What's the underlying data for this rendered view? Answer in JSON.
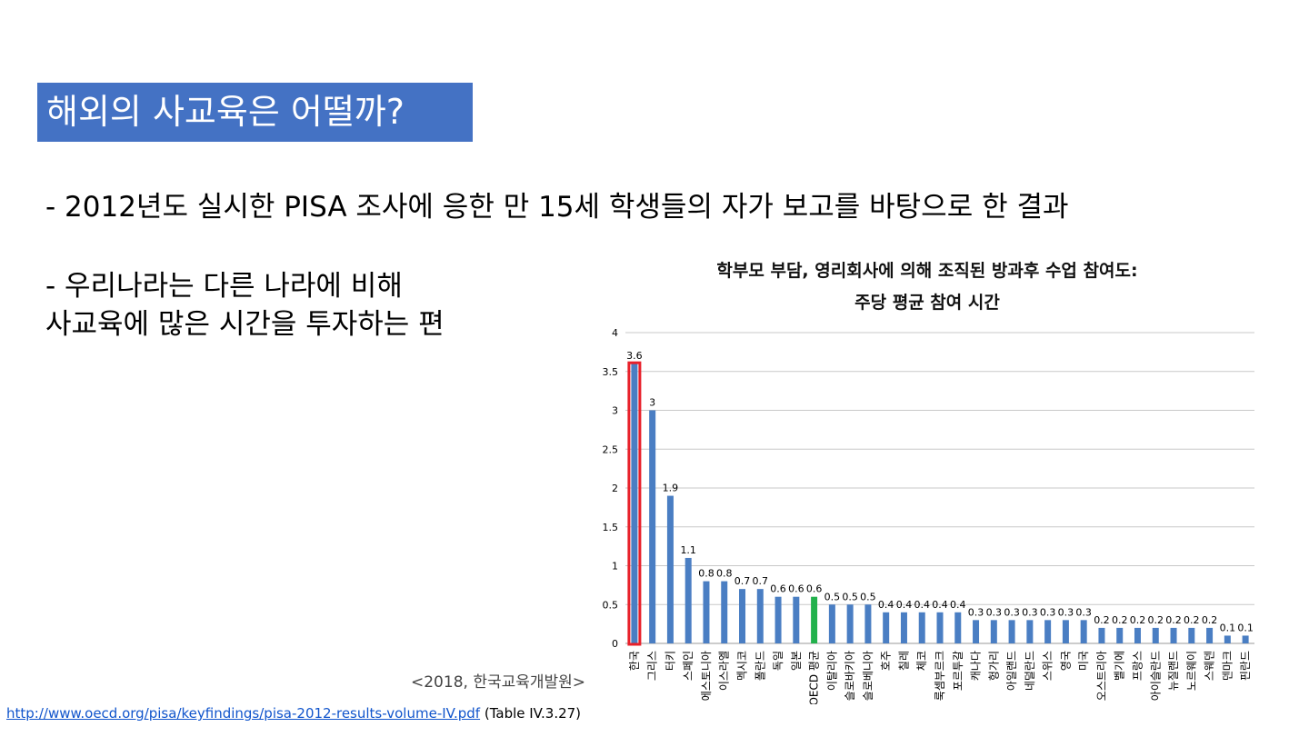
{
  "slide": {
    "title": "해외의 사교육은 어떨까?",
    "bullet1": "- 2012년도 실시한 PISA 조사에 응한 만 15세 학생들의 자가 보고를 바탕으로 한 결과",
    "bullet2_line1": "- 우리나라는 다른 나라에 비해",
    "bullet2_line2": "사교육에 많은 시간을 투자하는 편",
    "source_note": "<2018, 한국교육개발원>",
    "footer_link": "http://www.oecd.org/pisa/keyfindings/pisa-2012-results-volume-IV.pdf",
    "footer_ref": " (Table IV.3.27)"
  },
  "colors": {
    "title_bg": "#4472c4",
    "bar": "#4a7ec3",
    "highlight_bar": "#22b14c",
    "highlight_box": "#e8202a",
    "link": "#1155cc"
  },
  "chart_data": {
    "type": "bar",
    "title_line1": "학부모 부담, 영리회사에 의해 조직된 방과후 수업 참여도:",
    "title_line2": "주당 평균 참여 시간",
    "categories": [
      "한국",
      "그리스",
      "터키",
      "스페인",
      "에스토니아",
      "이스라엘",
      "멕시코",
      "폴란드",
      "독일",
      "일본",
      "OECD 평균",
      "이탈리아",
      "슬로바키아",
      "슬로베니아",
      "호주",
      "칠레",
      "체코",
      "룩셈부르크",
      "포르투갈",
      "캐나다",
      "헝가리",
      "아일랜드",
      "네덜란드",
      "스위스",
      "영국",
      "미국",
      "오스트리아",
      "벨기에",
      "프랑스",
      "아이슬란드",
      "뉴질랜드",
      "노르웨이",
      "스웨덴",
      "덴마크",
      "핀란드"
    ],
    "values": [
      3.6,
      3,
      1.9,
      1.1,
      0.8,
      0.8,
      0.7,
      0.7,
      0.6,
      0.6,
      0.6,
      0.5,
      0.5,
      0.5,
      0.4,
      0.4,
      0.4,
      0.4,
      0.4,
      0.3,
      0.3,
      0.3,
      0.3,
      0.3,
      0.3,
      0.3,
      0.2,
      0.2,
      0.2,
      0.2,
      0.2,
      0.2,
      0.2,
      0.1,
      0.1
    ],
    "highlight_index": 0,
    "average_index": 10,
    "ylim": [
      0,
      4
    ],
    "yticks": [
      0,
      0.5,
      1,
      1.5,
      2,
      2.5,
      3,
      3.5,
      4
    ],
    "grid": true,
    "legend": "none"
  }
}
